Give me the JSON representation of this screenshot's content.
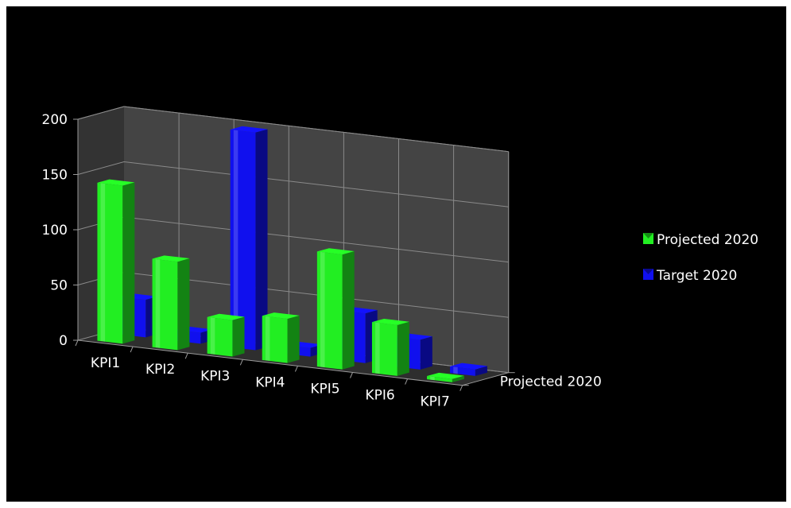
{
  "chart_data": {
    "type": "bar",
    "subtype": "3d-clustered-column",
    "title": "",
    "xlabel": "",
    "ylabel": "",
    "depth_axis_label": "Projected 2020",
    "categories": [
      "KPI1",
      "KPI2",
      "KPI3",
      "KPI4",
      "KPI5",
      "KPI6",
      "KPI7"
    ],
    "yticks": [
      "0",
      "50",
      "100",
      "150",
      "200"
    ],
    "ylim": [
      0,
      200
    ],
    "grid": true,
    "legend_position": "right",
    "series": [
      {
        "name": "Projected 2020",
        "color": "#22ee22",
        "values": [
          143,
          80,
          33,
          40,
          104,
          46,
          3
        ]
      },
      {
        "name": "Target 2020",
        "color": "#1010ee",
        "values": [
          34,
          10,
          197,
          8,
          45,
          27,
          6
        ]
      }
    ]
  }
}
